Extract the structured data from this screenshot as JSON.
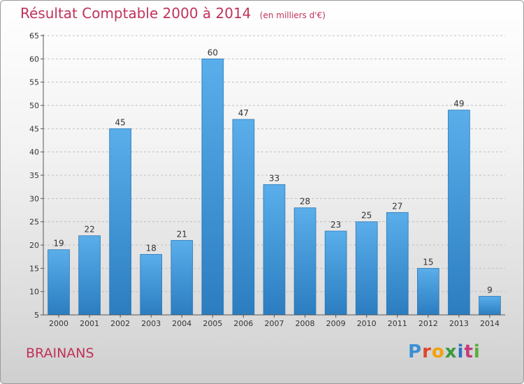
{
  "chart_data": {
    "type": "bar",
    "title": "Résultat Comptable 2000 à 2014",
    "unit": "(en milliers d'€)",
    "categories": [
      "2000",
      "2001",
      "2002",
      "2003",
      "2004",
      "2005",
      "2006",
      "2007",
      "2008",
      "2009",
      "2010",
      "2011",
      "2012",
      "2013",
      "2014"
    ],
    "values": [
      19,
      22,
      45,
      18,
      21,
      60,
      47,
      33,
      28,
      23,
      25,
      27,
      15,
      49,
      9
    ],
    "ylim": [
      5,
      65
    ],
    "yticks": [
      5,
      10,
      15,
      20,
      25,
      30,
      35,
      40,
      45,
      50,
      55,
      60,
      65
    ],
    "grid": true,
    "xlabel": "",
    "ylabel": ""
  },
  "commune": "BRAINANS",
  "logo": {
    "letters": [
      "P",
      "r",
      "o",
      "x",
      "i",
      "t",
      "i"
    ]
  },
  "colors": {
    "bar_top": "#5aaeea",
    "bar_bottom": "#2b7dc0",
    "title": "#c0325a"
  }
}
